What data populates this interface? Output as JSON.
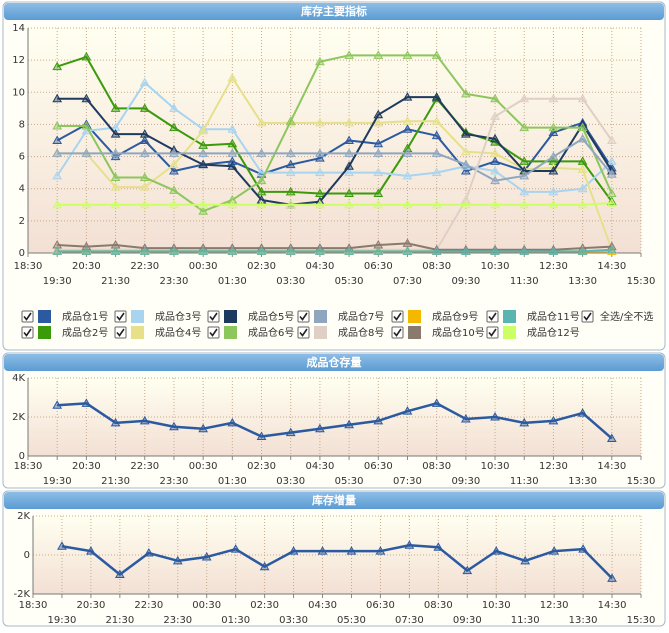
{
  "chart_data": [
    {
      "type": "line",
      "title": "库存主要指标",
      "categories": [
        "18:30",
        "19:30",
        "20:30",
        "21:30",
        "22:30",
        "23:30",
        "00:30",
        "01:30",
        "02:30",
        "03:30",
        "04:30",
        "05:30",
        "06:30",
        "07:30",
        "08:30",
        "09:30",
        "10:30",
        "11:30",
        "12:30",
        "13:30",
        "14:30",
        "15:30"
      ],
      "ylim": [
        0,
        14
      ],
      "yticks": [
        0,
        2,
        4,
        6,
        8,
        10,
        12,
        14
      ],
      "grid": true,
      "select_all_label": "全选/全不选",
      "series": [
        {
          "name": "成品仓1号",
          "color": "#2c5aa0",
          "values": [
            null,
            7.0,
            8.0,
            6.0,
            7.0,
            5.1,
            5.5,
            5.7,
            4.9,
            5.5,
            5.9,
            7.0,
            6.8,
            7.7,
            7.3,
            5.1,
            5.7,
            5.1,
            7.5,
            8.1,
            5.3,
            null
          ]
        },
        {
          "name": "成品仓2号",
          "color": "#3a9a0a",
          "values": [
            null,
            11.6,
            12.2,
            9.0,
            9.0,
            7.8,
            6.7,
            6.8,
            3.8,
            3.8,
            3.7,
            3.7,
            3.7,
            6.5,
            9.6,
            7.5,
            6.9,
            5.7,
            5.7,
            5.7,
            3.2,
            null
          ]
        },
        {
          "name": "成品仓3号",
          "color": "#a8d4f0",
          "values": [
            null,
            4.8,
            7.6,
            7.8,
            10.6,
            9.0,
            7.7,
            7.7,
            5.0,
            5.0,
            5.0,
            5.0,
            5.0,
            4.8,
            5.0,
            5.4,
            5.1,
            3.8,
            3.8,
            4.0,
            5.7,
            null
          ]
        },
        {
          "name": "成品仓4号",
          "color": "#e6e08a",
          "values": [
            null,
            6.2,
            6.2,
            4.1,
            4.1,
            5.5,
            7.6,
            10.9,
            8.1,
            8.1,
            8.1,
            8.1,
            8.1,
            8.2,
            8.2,
            6.3,
            6.2,
            5.2,
            5.3,
            5.2,
            0.2,
            null
          ]
        },
        {
          "name": "成品仓5号",
          "color": "#1f3a5f",
          "values": [
            null,
            9.6,
            9.6,
            7.4,
            7.4,
            6.4,
            5.5,
            5.4,
            3.3,
            3.0,
            3.2,
            5.4,
            8.6,
            9.7,
            9.7,
            7.4,
            7.1,
            5.1,
            5.1,
            8.0,
            5.1,
            null
          ]
        },
        {
          "name": "成品仓6号",
          "color": "#8dc65c",
          "values": [
            null,
            7.9,
            7.9,
            4.7,
            4.7,
            3.9,
            2.6,
            3.3,
            4.5,
            8.2,
            11.9,
            12.3,
            12.3,
            12.3,
            12.3,
            9.9,
            9.6,
            7.8,
            7.8,
            7.8,
            3.7,
            null
          ]
        },
        {
          "name": "成品仓7号",
          "color": "#8fa6bf",
          "values": [
            null,
            6.2,
            6.2,
            6.2,
            6.2,
            6.2,
            6.2,
            6.2,
            6.2,
            6.2,
            6.2,
            6.2,
            6.2,
            6.2,
            6.2,
            5.5,
            4.5,
            4.8,
            6.0,
            7.1,
            4.9,
            null
          ]
        },
        {
          "name": "成品仓8号",
          "color": "#e0cfc4",
          "values": [
            null,
            0.2,
            0.2,
            0.2,
            0.2,
            0.2,
            0.2,
            0.2,
            0.2,
            0.2,
            0.2,
            0.2,
            0.2,
            0.2,
            0.2,
            3.3,
            8.5,
            9.6,
            9.6,
            9.6,
            7.0,
            null
          ]
        },
        {
          "name": "成品仓9号",
          "color": "#f5b800",
          "values": [
            null,
            0.1,
            0.1,
            0.1,
            0.1,
            0.1,
            0.1,
            0.1,
            0.1,
            0.1,
            0.1,
            0.1,
            0.1,
            0.1,
            0.1,
            0.1,
            0.1,
            0.1,
            0.1,
            0.1,
            0.1,
            null
          ]
        },
        {
          "name": "成品仓10号",
          "color": "#8a7a6e",
          "values": [
            null,
            0.5,
            0.4,
            0.5,
            0.3,
            0.3,
            0.3,
            0.3,
            0.3,
            0.3,
            0.3,
            0.3,
            0.5,
            0.6,
            0.2,
            0.2,
            0.2,
            0.2,
            0.2,
            0.3,
            0.4,
            null
          ]
        },
        {
          "name": "成品仓11号",
          "color": "#5ab5b0",
          "values": [
            null,
            0.1,
            0.1,
            0.1,
            0.1,
            0.1,
            0.1,
            0.1,
            0.1,
            0.1,
            0.1,
            0.1,
            0.1,
            0.1,
            0.1,
            0.1,
            0.1,
            0.1,
            0.1,
            0.1,
            0.2,
            null
          ]
        },
        {
          "name": "成品仓12号",
          "color": "#ccff66",
          "values": [
            null,
            3.0,
            3.0,
            3.0,
            3.0,
            3.0,
            3.0,
            3.0,
            3.0,
            3.0,
            3.0,
            3.0,
            3.0,
            3.0,
            3.0,
            3.0,
            3.0,
            3.0,
            3.0,
            3.0,
            3.1,
            null
          ]
        }
      ]
    },
    {
      "type": "line",
      "title": "成品仓存量",
      "categories": [
        "18:30",
        "19:30",
        "20:30",
        "21:30",
        "22:30",
        "23:30",
        "00:30",
        "01:30",
        "02:30",
        "03:30",
        "04:30",
        "05:30",
        "06:30",
        "07:30",
        "08:30",
        "09:30",
        "10:30",
        "11:30",
        "12:30",
        "13:30",
        "14:30",
        "15:30"
      ],
      "ylim": [
        0,
        4000
      ],
      "yticks": [
        0,
        {
          "value": 2000,
          "label": "2K"
        },
        {
          "value": 4000,
          "label": "4K"
        }
      ],
      "grid": true,
      "color": "#2c5aa0",
      "values": [
        null,
        2600,
        2700,
        1700,
        1800,
        1500,
        1400,
        1700,
        1000,
        1200,
        1400,
        1600,
        1800,
        2300,
        2700,
        1900,
        2000,
        1700,
        1800,
        2200,
        900,
        null
      ]
    },
    {
      "type": "line",
      "title": "库存增量",
      "categories": [
        "18:30",
        "19:30",
        "20:30",
        "21:30",
        "22:30",
        "23:30",
        "00:30",
        "01:30",
        "02:30",
        "03:30",
        "04:30",
        "05:30",
        "06:30",
        "07:30",
        "08:30",
        "09:30",
        "10:30",
        "11:30",
        "12:30",
        "13:30",
        "14:30",
        "15:30"
      ],
      "ylim": [
        -2000,
        2000
      ],
      "yticks": [
        {
          "value": -2000,
          "label": "-2K"
        },
        0,
        {
          "value": 2000,
          "label": "2K"
        }
      ],
      "grid": true,
      "color": "#2c5aa0",
      "values": [
        null,
        450,
        200,
        -1000,
        100,
        -300,
        -100,
        300,
        -600,
        200,
        200,
        200,
        200,
        500,
        400,
        -800,
        200,
        -300,
        200,
        300,
        -1200,
        null
      ]
    }
  ]
}
